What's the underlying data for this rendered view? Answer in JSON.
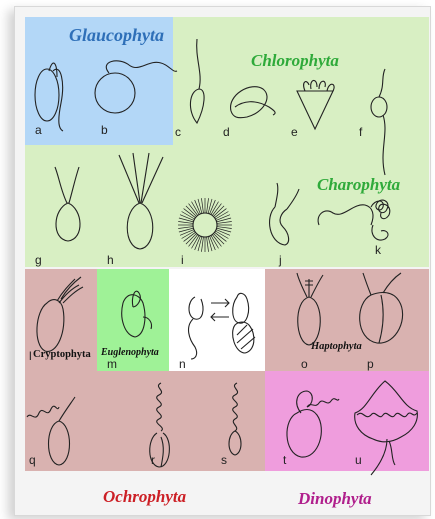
{
  "colors": {
    "glaucophyta_bg": "#b3d7f7",
    "chlorophyta_bg": "#d8efc3",
    "euglenophyta_bg": "#9ff297",
    "red_brown_bg": "#d9b2b0",
    "dinophyta_bg": "#ef9ddd",
    "glaucophyta_text": "#2e6fb8",
    "chlorophyta_text": "#2faa3a",
    "ochrophyta_text": "#cc1f25",
    "dinophyta_text": "#b01f8c"
  },
  "groups": {
    "glaucophyta": "Glaucophyta",
    "chlorophyta": "Chlorophyta",
    "charophyta": "Charophyta",
    "cryptophyta": "Cryptophyta",
    "euglenophyta": "Euglenophyta",
    "haptophyta": "Haptophyta",
    "ochrophyta": "Ochrophyta",
    "dinophyta": "Dinophyta"
  },
  "cells": [
    "a",
    "b",
    "c",
    "d",
    "e",
    "f",
    "g",
    "h",
    "i",
    "j",
    "k",
    "l",
    "m",
    "n",
    "o",
    "p",
    "q",
    "r",
    "s",
    "t",
    "u"
  ]
}
